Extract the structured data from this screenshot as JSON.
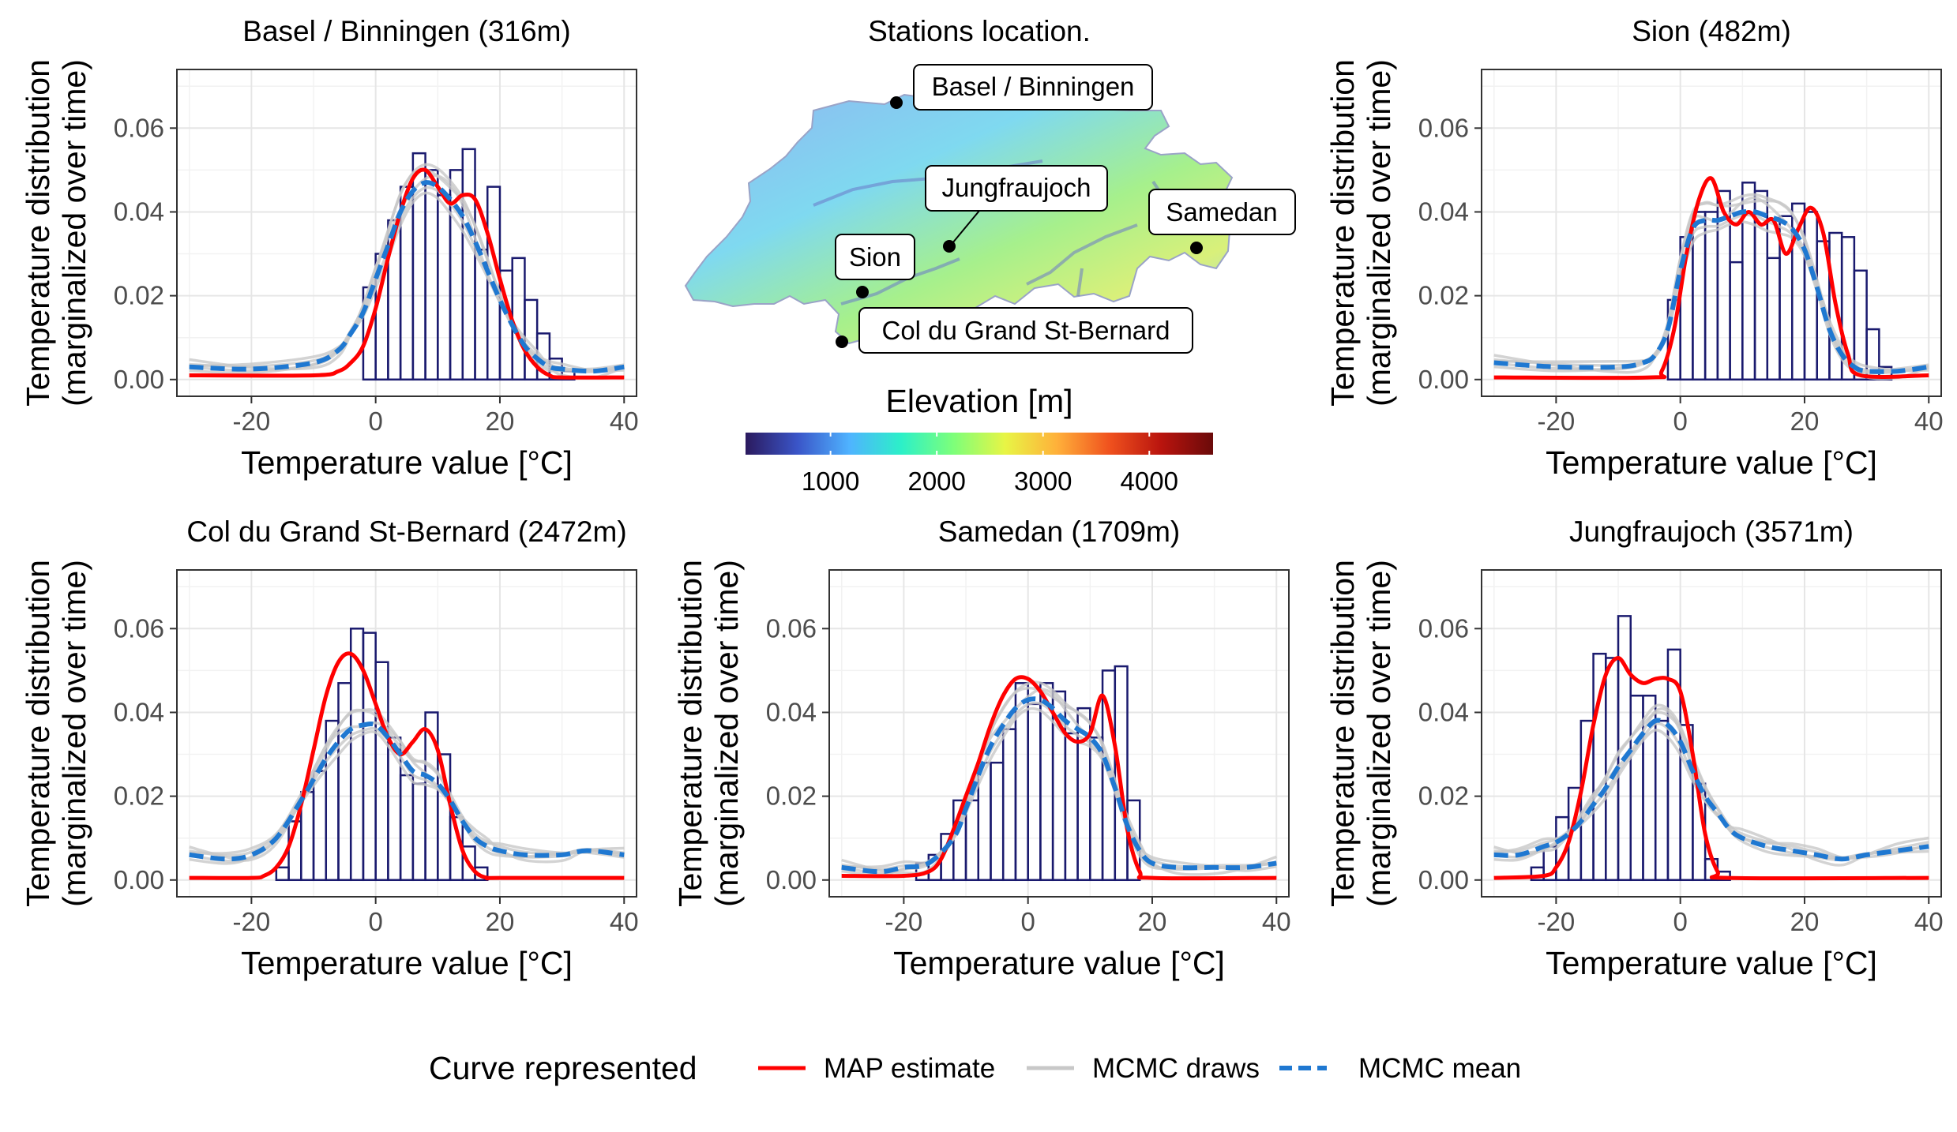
{
  "colors": {
    "histogram_stroke": "#1a1a6e",
    "map_estimate": "#ff0000",
    "mcmc_draws": "#c8c8c8",
    "mcmc_mean": "#1f78d1",
    "grid": "#e6e6e6",
    "panel_border": "#333333"
  },
  "map_panel": {
    "title": "Stations location.",
    "stations": [
      {
        "name": "Basel / Binningen"
      },
      {
        "name": "Jungfraujoch"
      },
      {
        "name": "Samedan"
      },
      {
        "name": "Sion"
      },
      {
        "name": "Col du Grand St-Bernard"
      }
    ],
    "colorbar": {
      "title": "Elevation [m]",
      "range": [
        200,
        4600
      ],
      "ticks": [
        "1000",
        "2000",
        "3000",
        "4000"
      ],
      "tick_values": [
        1000,
        2000,
        3000,
        4000
      ],
      "palette": [
        "#2b1a5e",
        "#3a55c8",
        "#4fb3ff",
        "#2cf0c8",
        "#7dff7a",
        "#e8f545",
        "#ffb03a",
        "#f0521e",
        "#b9140e",
        "#6a0a0a"
      ]
    }
  },
  "legend": {
    "title": "Curve represented",
    "items": [
      {
        "label": "MAP estimate",
        "color": "#ff0000",
        "style": "solid"
      },
      {
        "label": "MCMC draws",
        "color": "#c8c8c8",
        "style": "solid"
      },
      {
        "label": "MCMC mean",
        "color": "#1f78d1",
        "style": "dashed"
      }
    ]
  },
  "chart_data": [
    {
      "type": "histogram+line",
      "title": "Basel / Binningen (316m)",
      "xlabel": "Temperature value [°C]",
      "ylabel": "Temperature distribution\n(marginalized over time)",
      "xlim": [
        -32,
        42
      ],
      "ylim": [
        -0.004,
        0.074
      ],
      "xticks": [
        -20,
        0,
        20,
        40
      ],
      "yticks": [
        0,
        0.02,
        0.04,
        0.06
      ],
      "ytick_labels": [
        "0.00",
        "0.02",
        "0.04",
        "0.06"
      ],
      "grid": true,
      "bin_width": 2,
      "bin_start": -2,
      "hist_values": [
        0.022,
        0.03,
        0.038,
        0.046,
        0.054,
        0.05,
        0.044,
        0.05,
        0.055,
        0.031,
        0.046,
        0.026,
        0.029,
        0.019,
        0.011,
        0.005,
        0.002
      ],
      "series": [
        {
          "name": "MAP estimate",
          "x": [
            -30,
            -10,
            -6,
            -4,
            -2,
            0,
            2,
            4,
            6,
            8,
            10,
            12,
            14,
            16,
            18,
            20,
            22,
            24,
            26,
            28,
            30,
            40
          ],
          "y": [
            0.001,
            0.001,
            0.002,
            0.004,
            0.008,
            0.017,
            0.029,
            0.04,
            0.048,
            0.05,
            0.046,
            0.042,
            0.044,
            0.043,
            0.035,
            0.024,
            0.014,
            0.007,
            0.003,
            0.001,
            0.0005,
            0.0005
          ]
        },
        {
          "name": "MCMC mean",
          "x": [
            -30,
            -20,
            -10,
            -6,
            -4,
            -2,
            0,
            2,
            4,
            6,
            8,
            10,
            12,
            14,
            16,
            18,
            20,
            22,
            24,
            26,
            28,
            30,
            35,
            40
          ],
          "y": [
            0.003,
            0.0025,
            0.004,
            0.007,
            0.011,
            0.016,
            0.024,
            0.032,
            0.04,
            0.045,
            0.047,
            0.046,
            0.043,
            0.039,
            0.033,
            0.026,
            0.019,
            0.013,
            0.008,
            0.005,
            0.003,
            0.0025,
            0.002,
            0.003
          ]
        }
      ]
    },
    {
      "type": "histogram+line",
      "title": "Sion (482m)",
      "xlabel": "Temperature value [°C]",
      "ylabel": "Temperature distribution\n(marginalized over time)",
      "xlim": [
        -32,
        42
      ],
      "ylim": [
        -0.004,
        0.074
      ],
      "xticks": [
        -20,
        0,
        20,
        40
      ],
      "yticks": [
        0,
        0.02,
        0.04,
        0.06
      ],
      "ytick_labels": [
        "0.00",
        "0.02",
        "0.04",
        "0.06"
      ],
      "grid": true,
      "bin_width": 2,
      "bin_start": -2,
      "hist_values": [
        0.019,
        0.034,
        0.04,
        0.04,
        0.045,
        0.028,
        0.047,
        0.045,
        0.029,
        0.039,
        0.042,
        0.04,
        0.033,
        0.035,
        0.034,
        0.026,
        0.012,
        0.003
      ],
      "series": [
        {
          "name": "MAP estimate",
          "x": [
            -30,
            -5,
            -3,
            -1,
            1,
            3,
            5,
            7,
            9,
            11,
            13,
            15,
            17,
            19,
            21,
            23,
            25,
            27,
            29,
            40
          ],
          "y": [
            0.0005,
            0.0005,
            0.002,
            0.012,
            0.03,
            0.043,
            0.048,
            0.04,
            0.037,
            0.04,
            0.037,
            0.038,
            0.03,
            0.036,
            0.041,
            0.035,
            0.018,
            0.006,
            0.001,
            0.001
          ]
        },
        {
          "name": "MCMC mean",
          "x": [
            -30,
            -20,
            -10,
            -6,
            -4,
            -2,
            0,
            2,
            4,
            6,
            8,
            10,
            12,
            14,
            16,
            18,
            20,
            22,
            24,
            26,
            28,
            30,
            35,
            40
          ],
          "y": [
            0.004,
            0.003,
            0.003,
            0.004,
            0.006,
            0.012,
            0.026,
            0.036,
            0.038,
            0.038,
            0.039,
            0.04,
            0.04,
            0.039,
            0.038,
            0.036,
            0.031,
            0.022,
            0.012,
            0.006,
            0.003,
            0.002,
            0.002,
            0.003
          ]
        }
      ]
    },
    {
      "type": "histogram+line",
      "title": "Col du Grand St-Bernard (2472m)",
      "xlabel": "Temperature value [°C]",
      "ylabel": "Temperature distribution\n(marginalized over time)",
      "xlim": [
        -32,
        42
      ],
      "ylim": [
        -0.004,
        0.074
      ],
      "xticks": [
        -20,
        0,
        20,
        40
      ],
      "yticks": [
        0,
        0.02,
        0.04,
        0.06
      ],
      "ytick_labels": [
        "0.00",
        "0.02",
        "0.04",
        "0.06"
      ],
      "grid": true,
      "bin_width": 2,
      "bin_start": -16,
      "hist_values": [
        0.003,
        0.014,
        0.021,
        0.026,
        0.038,
        0.047,
        0.06,
        0.059,
        0.052,
        0.034,
        0.025,
        0.023,
        0.04,
        0.03,
        0.015,
        0.008,
        0.003
      ],
      "series": [
        {
          "name": "MAP estimate",
          "x": [
            -30,
            -20,
            -18,
            -16,
            -14,
            -12,
            -10,
            -8,
            -6,
            -4,
            -2,
            0,
            2,
            4,
            6,
            8,
            10,
            12,
            14,
            16,
            18,
            20,
            40
          ],
          "y": [
            0.0005,
            0.0005,
            0.001,
            0.003,
            0.008,
            0.018,
            0.031,
            0.044,
            0.052,
            0.054,
            0.05,
            0.042,
            0.034,
            0.03,
            0.033,
            0.036,
            0.031,
            0.018,
            0.007,
            0.002,
            0.0005,
            0.0005,
            0.0005
          ]
        },
        {
          "name": "MCMC mean",
          "x": [
            -30,
            -24,
            -20,
            -16,
            -12,
            -10,
            -8,
            -6,
            -4,
            -2,
            0,
            2,
            4,
            6,
            8,
            10,
            12,
            14,
            16,
            18,
            20,
            24,
            30,
            34,
            40
          ],
          "y": [
            0.006,
            0.005,
            0.006,
            0.01,
            0.019,
            0.024,
            0.029,
            0.033,
            0.036,
            0.037,
            0.037,
            0.034,
            0.03,
            0.026,
            0.025,
            0.023,
            0.019,
            0.014,
            0.01,
            0.008,
            0.007,
            0.006,
            0.006,
            0.007,
            0.006
          ]
        }
      ]
    },
    {
      "type": "histogram+line",
      "title": "Samedan (1709m)",
      "xlabel": "Temperature value [°C]",
      "ylabel": "Temperature distribution\n(marginalized over time)",
      "xlim": [
        -32,
        42
      ],
      "ylim": [
        -0.004,
        0.074
      ],
      "xticks": [
        -20,
        0,
        20,
        40
      ],
      "yticks": [
        0,
        0.02,
        0.04,
        0.06
      ],
      "ytick_labels": [
        "0.00",
        "0.02",
        "0.04",
        "0.06"
      ],
      "grid": true,
      "bin_width": 2,
      "bin_start": -18,
      "hist_values": [
        0.004,
        0.006,
        0.011,
        0.019,
        0.019,
        0.028,
        0.028,
        0.036,
        0.047,
        0.042,
        0.047,
        0.045,
        0.035,
        0.041,
        0.034,
        0.05,
        0.051,
        0.019
      ],
      "series": [
        {
          "name": "MAP estimate",
          "x": [
            -30,
            -20,
            -16,
            -14,
            -12,
            -10,
            -8,
            -6,
            -4,
            -2,
            0,
            2,
            4,
            6,
            8,
            10,
            12,
            14,
            16,
            18,
            20,
            40
          ],
          "y": [
            0.001,
            0.001,
            0.002,
            0.005,
            0.012,
            0.02,
            0.028,
            0.037,
            0.044,
            0.048,
            0.048,
            0.045,
            0.04,
            0.035,
            0.033,
            0.035,
            0.044,
            0.032,
            0.012,
            0.002,
            0.0005,
            0.0005
          ]
        },
        {
          "name": "MCMC mean",
          "x": [
            -30,
            -24,
            -20,
            -16,
            -12,
            -10,
            -8,
            -6,
            -4,
            -2,
            0,
            2,
            4,
            6,
            8,
            10,
            12,
            14,
            16,
            18,
            20,
            24,
            30,
            35,
            40
          ],
          "y": [
            0.003,
            0.002,
            0.003,
            0.004,
            0.01,
            0.017,
            0.025,
            0.032,
            0.037,
            0.041,
            0.043,
            0.043,
            0.041,
            0.038,
            0.036,
            0.034,
            0.03,
            0.022,
            0.013,
            0.007,
            0.004,
            0.003,
            0.003,
            0.003,
            0.004
          ]
        }
      ]
    },
    {
      "type": "histogram+line",
      "title": "Jungfraujoch (3571m)",
      "xlabel": "Temperature value [°C]",
      "ylabel": "Temperature distribution\n(marginalized over time)",
      "xlim": [
        -32,
        42
      ],
      "ylim": [
        -0.004,
        0.074
      ],
      "xticks": [
        -20,
        0,
        20,
        40
      ],
      "yticks": [
        0,
        0.02,
        0.04,
        0.06
      ],
      "ytick_labels": [
        "0.00",
        "0.02",
        "0.04",
        "0.06"
      ],
      "grid": true,
      "bin_width": 2,
      "bin_start": -24,
      "hist_values": [
        0.003,
        0.008,
        0.015,
        0.022,
        0.038,
        0.054,
        0.053,
        0.063,
        0.044,
        0.044,
        0.038,
        0.055,
        0.037,
        0.023,
        0.005,
        0.002
      ],
      "series": [
        {
          "name": "MAP estimate",
          "x": [
            -30,
            -22,
            -20,
            -18,
            -16,
            -14,
            -12,
            -10,
            -8,
            -6,
            -4,
            -2,
            0,
            2,
            4,
            6,
            8,
            40
          ],
          "y": [
            0.0005,
            0.001,
            0.003,
            0.009,
            0.021,
            0.037,
            0.049,
            0.053,
            0.049,
            0.047,
            0.048,
            0.048,
            0.045,
            0.03,
            0.011,
            0.002,
            0.0005,
            0.0005
          ]
        },
        {
          "name": "MCMC mean",
          "x": [
            -30,
            -26,
            -22,
            -20,
            -18,
            -16,
            -14,
            -12,
            -10,
            -8,
            -6,
            -4,
            -2,
            0,
            2,
            4,
            6,
            8,
            10,
            14,
            18,
            22,
            26,
            30,
            35,
            40
          ],
          "y": [
            0.006,
            0.006,
            0.008,
            0.009,
            0.011,
            0.014,
            0.018,
            0.022,
            0.027,
            0.031,
            0.035,
            0.038,
            0.037,
            0.033,
            0.026,
            0.02,
            0.016,
            0.012,
            0.01,
            0.008,
            0.007,
            0.006,
            0.005,
            0.006,
            0.007,
            0.008
          ]
        }
      ]
    }
  ]
}
